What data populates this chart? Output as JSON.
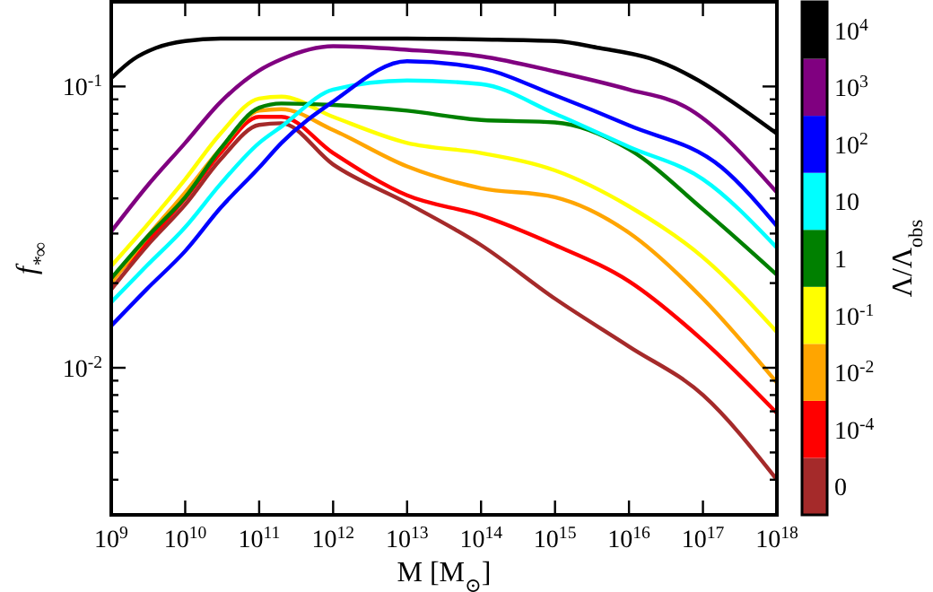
{
  "chart_data": {
    "type": "line",
    "xlabel": "M [M$_{⊙}$]",
    "ylabel": "f$_{*∞}$",
    "legend_title": "Λ/Λ$_{obs}$",
    "log": "xy",
    "grid": false,
    "legend": "right",
    "marker": "none",
    "line_style": "solid",
    "x": [
      1000000000.0,
      3000000000.0,
      10000000000.0,
      30000000000.0,
      100000000000.0,
      200000000000.0,
      1000000000000.0,
      10000000000000.0,
      100000000000000.0,
      1000000000000000.0,
      1e+16,
      1e+17,
      1e+18
    ],
    "xlim": [
      1000000000.0,
      1e+18
    ],
    "xticks": [
      {
        "value": 1000000000.0,
        "label": "10$^{9}$"
      },
      {
        "value": 10000000000.0,
        "label": "10$^{10}$"
      },
      {
        "value": 100000000000.0,
        "label": "10$^{11}$"
      },
      {
        "value": 1000000000000.0,
        "label": "10$^{12}$"
      },
      {
        "value": 10000000000000.0,
        "label": "10$^{13}$"
      },
      {
        "value": 100000000000000.0,
        "label": "10$^{14}$"
      },
      {
        "value": 1000000000000000.0,
        "label": "10$^{15}$"
      },
      {
        "value": 1e+16,
        "label": "10$^{16}$"
      },
      {
        "value": 1e+17,
        "label": "10$^{17}$"
      },
      {
        "value": 1e+18,
        "label": "10$^{18}$"
      }
    ],
    "ylim": [
      0.003,
      0.2
    ],
    "yticks": [
      {
        "value": 0.003,
        "label": null
      },
      {
        "value": 0.004,
        "label": null
      },
      {
        "value": 0.005,
        "label": null
      },
      {
        "value": 0.006,
        "label": null
      },
      {
        "value": 0.007,
        "label": null
      },
      {
        "value": 0.008,
        "label": null
      },
      {
        "value": 0.009,
        "label": null
      },
      {
        "value": 0.01,
        "label": "10$^{-2}$"
      },
      {
        "value": 0.02,
        "label": null
      },
      {
        "value": 0.03,
        "label": null
      },
      {
        "value": 0.04,
        "label": null
      },
      {
        "value": 0.05,
        "label": null
      },
      {
        "value": 0.06,
        "label": null
      },
      {
        "value": 0.07,
        "label": null
      },
      {
        "value": 0.08,
        "label": null
      },
      {
        "value": 0.09,
        "label": null
      },
      {
        "value": 0.1,
        "label": "10$^{-1}$"
      },
      {
        "value": 0.2,
        "label": null
      }
    ],
    "series": [
      {
        "name": "0",
        "color": "#a52a2a",
        "values": [
          0.019,
          0.027,
          0.038,
          0.055,
          0.073,
          0.074,
          0.0528,
          0.0385,
          0.0273,
          0.0176,
          0.0119,
          0.008,
          0.004
        ]
      },
      {
        "name": "10$^{-4}$",
        "color": "#ff0000",
        "values": [
          0.0203,
          0.028,
          0.04,
          0.058,
          0.078,
          0.078,
          0.058,
          0.041,
          0.0348,
          0.0273,
          0.0203,
          0.0125,
          0.0069
        ]
      },
      {
        "name": "10$^{-2}$",
        "color": "#ffa500",
        "values": [
          0.02,
          0.029,
          0.042,
          0.06,
          0.082,
          0.083,
          0.07,
          0.052,
          0.0435,
          0.0404,
          0.0302,
          0.0176,
          0.00885
        ]
      },
      {
        "name": "10$^{-1}$",
        "color": "#ffff00",
        "values": [
          0.023,
          0.032,
          0.0468,
          0.068,
          0.0906,
          0.092,
          0.078,
          0.063,
          0.058,
          0.0503,
          0.0375,
          0.0247,
          0.0134
        ]
      },
      {
        "name": "1",
        "color": "#008000",
        "values": [
          0.0208,
          0.029,
          0.0404,
          0.06,
          0.084,
          0.087,
          0.086,
          0.082,
          0.076,
          0.0745,
          0.0598,
          0.0366,
          0.0214
        ]
      },
      {
        "name": "10",
        "color": "#00ffff",
        "values": [
          0.0171,
          0.023,
          0.0316,
          0.045,
          0.063,
          0.072,
          0.0975,
          0.105,
          0.102,
          0.08,
          0.061,
          0.0468,
          0.0267
        ]
      },
      {
        "name": "10$^{2}$",
        "color": "#0000ff",
        "x": [
          1000000000.0,
          3000000000.0,
          10000000000.0,
          30000000000.0,
          100000000000.0,
          200000000000.0,
          1000000000000.0,
          10000000000000.0,
          100000000000000.0,
          1000000000000000.0,
          1e+16,
          1.8e+17,
          1e+18
        ],
        "values": [
          0.0141,
          0.019,
          0.026,
          0.037,
          0.0515,
          0.063,
          0.0884,
          0.123,
          0.116,
          0.093,
          0.0727,
          0.0515,
          0.0319
        ]
      },
      {
        "name": "10$^{3}$",
        "color": "#800080",
        "x": [
          1000000000.0,
          3000000000.0,
          10000000000.0,
          30000000000.0,
          100000000000.0,
          200000000000.0,
          1000000000000.0,
          10000000000000.0,
          100000000000000.0,
          1000000000000000.0,
          1e+16,
          5.6e+16,
          1e+18
        ],
        "values": [
          0.0305,
          0.044,
          0.063,
          0.088,
          0.114,
          0.125,
          0.139,
          0.135,
          0.128,
          0.113,
          0.0975,
          0.085,
          0.042
        ]
      },
      {
        "name": "10$^{4}$",
        "color": "#000000",
        "x": [
          1000000000.0,
          2000000000.0,
          4000000000.0,
          10000000000.0,
          30000000000.0,
          100000000000.0,
          1000000000000.0,
          10000000000000.0,
          100000000000000.0,
          1000000000000000.0,
          4000000000000000.0,
          1.9e+16,
          1e+18
        ],
        "values": [
          0.107,
          0.125,
          0.137,
          0.145,
          0.148,
          0.148,
          0.148,
          0.148,
          0.147,
          0.145,
          0.137,
          0.126,
          0.068
        ]
      }
    ]
  }
}
